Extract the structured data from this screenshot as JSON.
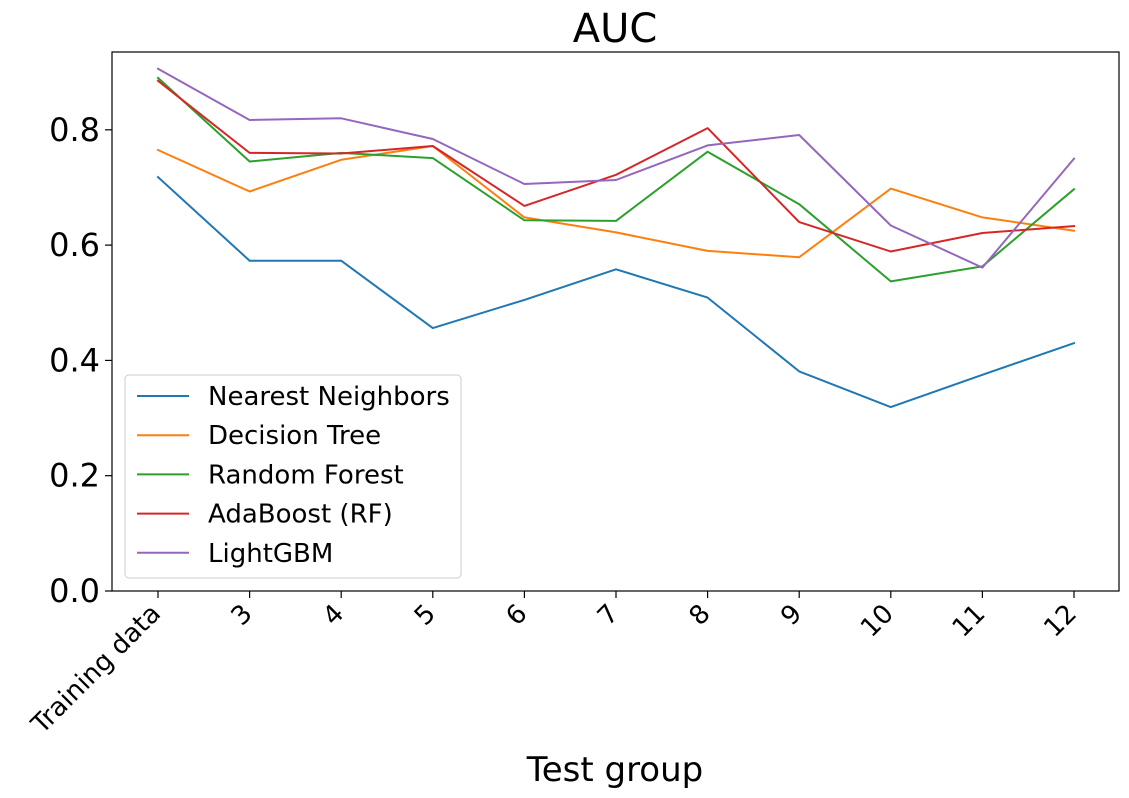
{
  "chart_data": {
    "type": "line",
    "title": "AUC",
    "xlabel": "Test group",
    "ylabel": "",
    "categories": [
      "Training data",
      "3",
      "4",
      "5",
      "6",
      "7",
      "8",
      "9",
      "10",
      "11",
      "12"
    ],
    "ylim": [
      0,
      0.935
    ],
    "yticks": [
      "0.0",
      "0.2",
      "0.4",
      "0.6",
      "0.8"
    ],
    "grid": false,
    "legend": "lower-left",
    "series": [
      {
        "name": "Nearest Neighbors",
        "color": "#1f77b4",
        "values": [
          0.718,
          0.573,
          0.573,
          0.456,
          0.505,
          0.558,
          0.509,
          0.381,
          0.319,
          0.375,
          0.43
        ]
      },
      {
        "name": "Decision Tree",
        "color": "#ff7f0e",
        "values": [
          0.765,
          0.693,
          0.748,
          0.772,
          0.648,
          0.622,
          0.59,
          0.579,
          0.698,
          0.648,
          0.625
        ]
      },
      {
        "name": "Random Forest",
        "color": "#2ca02c",
        "values": [
          0.89,
          0.745,
          0.76,
          0.751,
          0.643,
          0.642,
          0.762,
          0.671,
          0.537,
          0.563,
          0.697
        ]
      },
      {
        "name": "AdaBoost (RF)",
        "color": "#d62728",
        "values": [
          0.885,
          0.76,
          0.759,
          0.772,
          0.668,
          0.722,
          0.803,
          0.64,
          0.589,
          0.621,
          0.633
        ]
      },
      {
        "name": "LightGBM",
        "color": "#9467bd",
        "values": [
          0.906,
          0.817,
          0.82,
          0.784,
          0.706,
          0.713,
          0.773,
          0.791,
          0.634,
          0.561,
          0.75
        ]
      }
    ]
  }
}
